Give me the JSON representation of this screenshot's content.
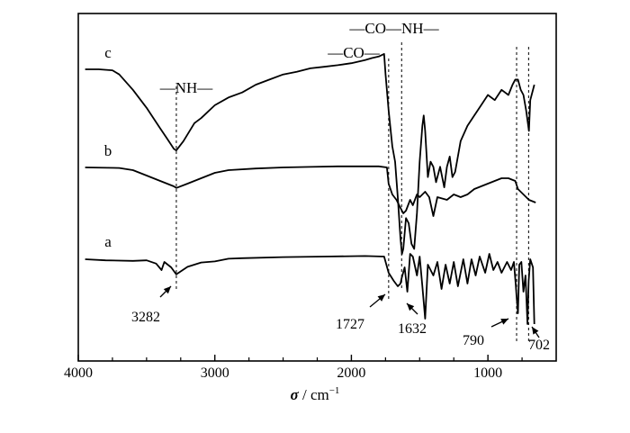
{
  "chart_data": {
    "type": "line",
    "xlabel": {
      "symbol": "σ",
      "rest": " / cm",
      "sup": "−1"
    },
    "x_ticks": [
      4000,
      3000,
      2000,
      1000
    ],
    "x_tick_labels": [
      "4000",
      "3000",
      "2000",
      "1000"
    ],
    "xlim": [
      4000,
      500
    ],
    "y_ticks_shown": false,
    "grid": false,
    "series": [
      {
        "name": "a",
        "points": [
          [
            3950,
            0
          ],
          [
            3800,
            0.02
          ],
          [
            3600,
            0.03
          ],
          [
            3500,
            0.02
          ],
          [
            3430,
            0.08
          ],
          [
            3390,
            0.2
          ],
          [
            3370,
            0.05
          ],
          [
            3320,
            0.15
          ],
          [
            3282,
            0.28
          ],
          [
            3200,
            0.14
          ],
          [
            3100,
            0.06
          ],
          [
            3000,
            0.04
          ],
          [
            2900,
            -0.01
          ],
          [
            2800,
            -0.02
          ],
          [
            2500,
            -0.04
          ],
          [
            2200,
            -0.05
          ],
          [
            1900,
            -0.06
          ],
          [
            1760,
            -0.05
          ],
          [
            1727,
            0.25
          ],
          [
            1690,
            0.4
          ],
          [
            1660,
            0.5
          ],
          [
            1640,
            0.45
          ],
          [
            1632,
            0.35
          ],
          [
            1610,
            0.15
          ],
          [
            1590,
            0.6
          ],
          [
            1570,
            -0.1
          ],
          [
            1550,
            -0.05
          ],
          [
            1520,
            0.3
          ],
          [
            1500,
            -0.05
          ],
          [
            1480,
            0.5
          ],
          [
            1460,
            1.1
          ],
          [
            1440,
            0.1
          ],
          [
            1400,
            0.3
          ],
          [
            1370,
            0.05
          ],
          [
            1340,
            0.55
          ],
          [
            1310,
            0.1
          ],
          [
            1280,
            0.45
          ],
          [
            1250,
            0.05
          ],
          [
            1220,
            0.5
          ],
          [
            1180,
            0.0
          ],
          [
            1150,
            0.45
          ],
          [
            1120,
            0.0
          ],
          [
            1090,
            0.3
          ],
          [
            1060,
            -0.05
          ],
          [
            1020,
            0.25
          ],
          [
            990,
            -0.1
          ],
          [
            960,
            0.2
          ],
          [
            930,
            0.05
          ],
          [
            900,
            0.25
          ],
          [
            860,
            0.05
          ],
          [
            830,
            0.2
          ],
          [
            810,
            0.05
          ],
          [
            795,
            0.5
          ],
          [
            790,
            0.7
          ],
          [
            780,
            1.0
          ],
          [
            770,
            0.1
          ],
          [
            755,
            0.05
          ],
          [
            740,
            0.6
          ],
          [
            725,
            0.3
          ],
          [
            710,
            1.2
          ],
          [
            702,
            0.4
          ],
          [
            690,
            0.0
          ],
          [
            670,
            0.15
          ],
          [
            660,
            1.2
          ]
        ]
      },
      {
        "name": "b",
        "points": [
          [
            3950,
            0
          ],
          [
            3700,
            0.01
          ],
          [
            3600,
            0.05
          ],
          [
            3500,
            0.15
          ],
          [
            3400,
            0.25
          ],
          [
            3300,
            0.35
          ],
          [
            3282,
            0.38
          ],
          [
            3200,
            0.3
          ],
          [
            3100,
            0.2
          ],
          [
            3000,
            0.1
          ],
          [
            2900,
            0.05
          ],
          [
            2700,
            0.02
          ],
          [
            2500,
            0.0
          ],
          [
            2300,
            -0.01
          ],
          [
            2100,
            -0.02
          ],
          [
            1900,
            -0.02
          ],
          [
            1800,
            -0.02
          ],
          [
            1740,
            0.0
          ],
          [
            1727,
            0.3
          ],
          [
            1700,
            0.5
          ],
          [
            1670,
            0.6
          ],
          [
            1640,
            0.75
          ],
          [
            1620,
            0.85
          ],
          [
            1600,
            0.8
          ],
          [
            1570,
            0.6
          ],
          [
            1550,
            0.7
          ],
          [
            1520,
            0.5
          ],
          [
            1500,
            0.55
          ],
          [
            1460,
            0.45
          ],
          [
            1430,
            0.55
          ],
          [
            1400,
            0.9
          ],
          [
            1370,
            0.55
          ],
          [
            1300,
            0.6
          ],
          [
            1250,
            0.5
          ],
          [
            1200,
            0.55
          ],
          [
            1150,
            0.5
          ],
          [
            1100,
            0.4
          ],
          [
            1000,
            0.3
          ],
          [
            900,
            0.2
          ],
          [
            850,
            0.2
          ],
          [
            800,
            0.25
          ],
          [
            780,
            0.4
          ],
          [
            740,
            0.5
          ],
          [
            700,
            0.6
          ],
          [
            650,
            0.65
          ]
        ]
      },
      {
        "name": "c",
        "points": [
          [
            3950,
            0
          ],
          [
            3900,
            0
          ],
          [
            3850,
            0
          ],
          [
            3750,
            0.02
          ],
          [
            3700,
            0.1
          ],
          [
            3600,
            0.4
          ],
          [
            3500,
            0.75
          ],
          [
            3400,
            1.15
          ],
          [
            3350,
            1.35
          ],
          [
            3300,
            1.55
          ],
          [
            3282,
            1.58
          ],
          [
            3230,
            1.4
          ],
          [
            3150,
            1.05
          ],
          [
            3100,
            0.95
          ],
          [
            3000,
            0.7
          ],
          [
            2900,
            0.55
          ],
          [
            2800,
            0.45
          ],
          [
            2700,
            0.3
          ],
          [
            2600,
            0.2
          ],
          [
            2500,
            0.1
          ],
          [
            2400,
            0.05
          ],
          [
            2300,
            -0.02
          ],
          [
            2200,
            -0.05
          ],
          [
            2100,
            -0.08
          ],
          [
            2000,
            -0.12
          ],
          [
            1900,
            -0.18
          ],
          [
            1850,
            -0.22
          ],
          [
            1800,
            -0.25
          ],
          [
            1760,
            -0.3
          ],
          [
            1750,
            0.1
          ],
          [
            1727,
            0.8
          ],
          [
            1700,
            1.5
          ],
          [
            1680,
            1.8
          ],
          [
            1660,
            2.5
          ],
          [
            1650,
            2.9
          ],
          [
            1640,
            3.3
          ],
          [
            1630,
            3.6
          ],
          [
            1620,
            3.5
          ],
          [
            1600,
            2.9
          ],
          [
            1580,
            3.0
          ],
          [
            1560,
            3.4
          ],
          [
            1540,
            3.5
          ],
          [
            1520,
            2.8
          ],
          [
            1500,
            1.8
          ],
          [
            1480,
            1.1
          ],
          [
            1470,
            0.9
          ],
          [
            1460,
            1.2
          ],
          [
            1440,
            2.1
          ],
          [
            1420,
            1.8
          ],
          [
            1400,
            1.9
          ],
          [
            1380,
            2.2
          ],
          [
            1350,
            1.9
          ],
          [
            1320,
            2.3
          ],
          [
            1300,
            1.9
          ],
          [
            1280,
            1.7
          ],
          [
            1260,
            2.1
          ],
          [
            1240,
            2.0
          ],
          [
            1200,
            1.4
          ],
          [
            1150,
            1.1
          ],
          [
            1100,
            0.9
          ],
          [
            1050,
            0.7
          ],
          [
            1000,
            0.5
          ],
          [
            950,
            0.6
          ],
          [
            900,
            0.4
          ],
          [
            850,
            0.5
          ],
          [
            820,
            0.3
          ],
          [
            800,
            0.2
          ],
          [
            780,
            0.2
          ],
          [
            760,
            0.4
          ],
          [
            740,
            0.5
          ],
          [
            720,
            0.8
          ],
          [
            700,
            1.2
          ],
          [
            690,
            0.6
          ],
          [
            680,
            0.5
          ],
          [
            660,
            0.3
          ]
        ]
      }
    ],
    "curve_labels": [
      "a",
      "b",
      "c"
    ],
    "annotations": {
      "band_labels": [
        "—NH—",
        "—CO—",
        "—CO—NH—"
      ],
      "peak_labels": [
        "3282",
        "1727",
        "1632",
        "790",
        "702"
      ]
    }
  }
}
